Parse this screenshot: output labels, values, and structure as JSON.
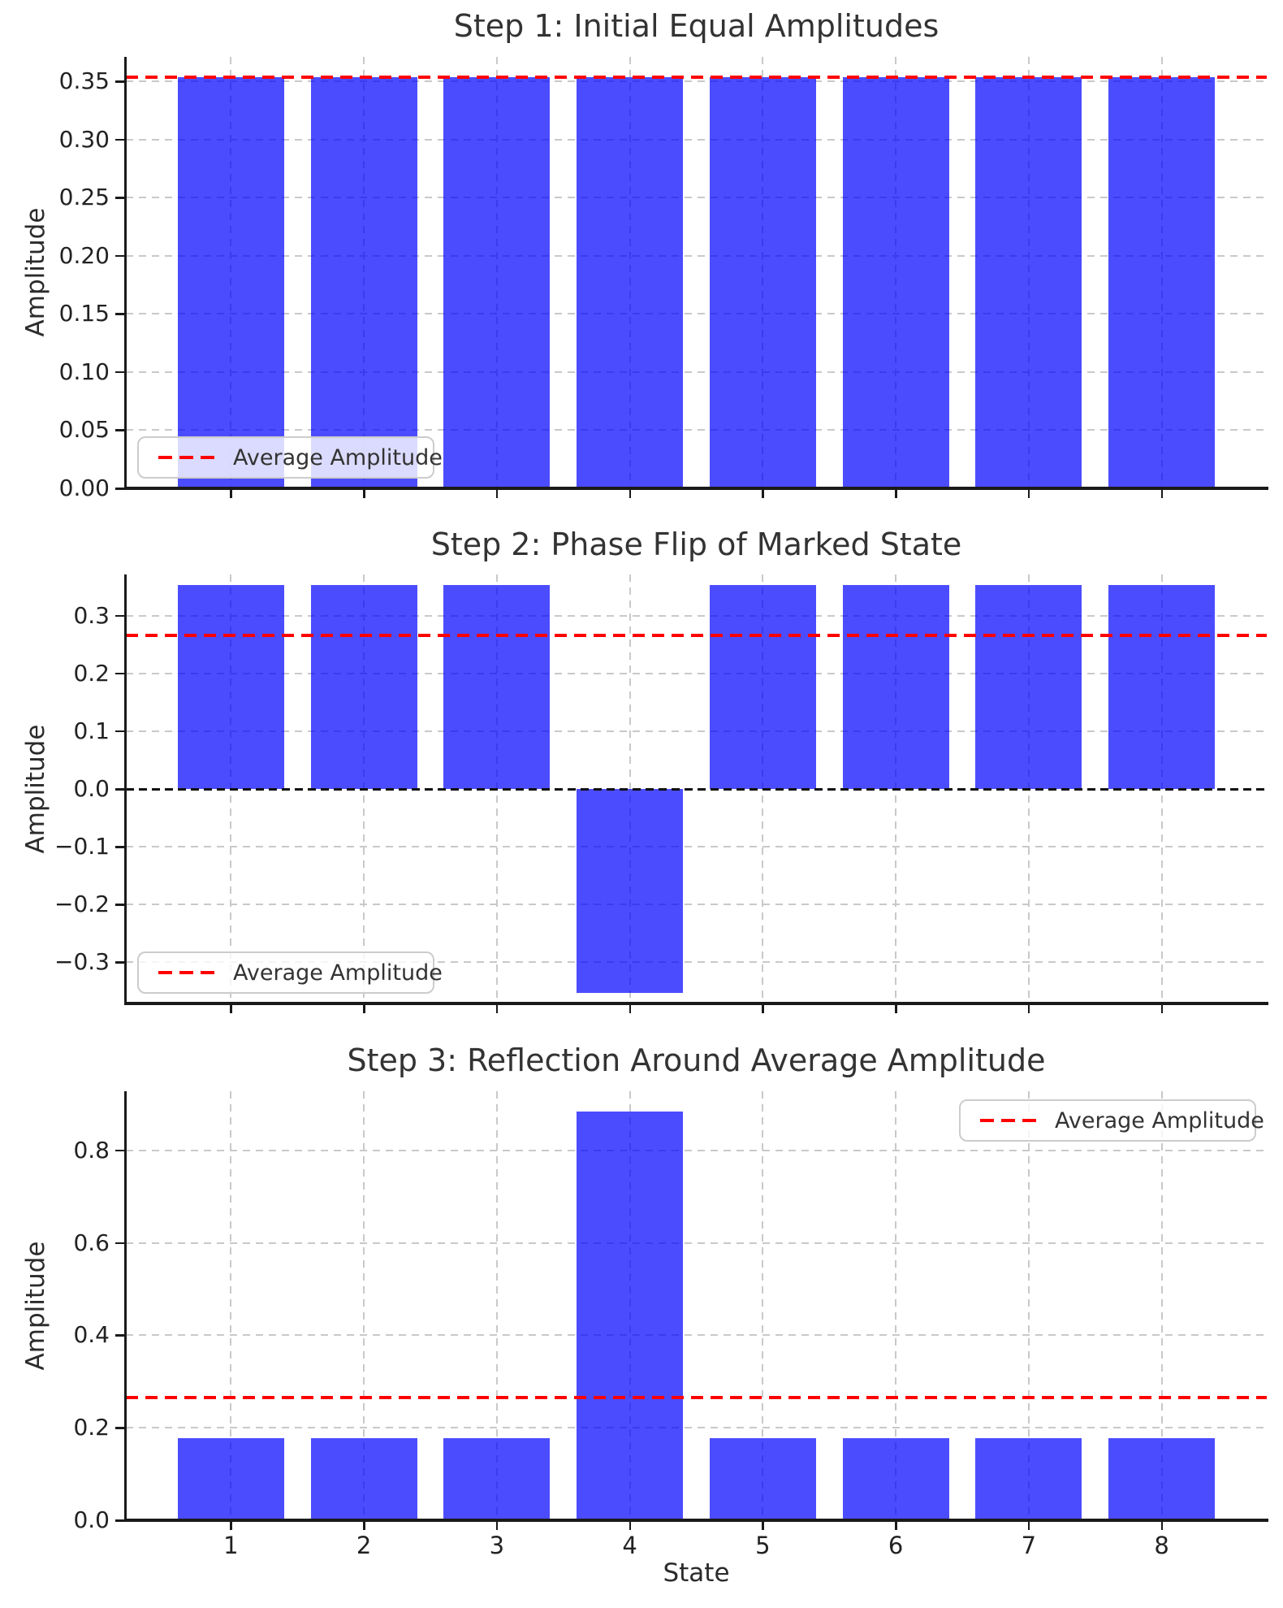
{
  "figure": {
    "background": "#ffffff",
    "bar_color": "#0000FF",
    "bar_alpha": 0.7,
    "average_line_color": "#FF0000",
    "grid_color": "#C9C9C9",
    "axis_color": "#1A1A1A",
    "text_color": "#333333"
  },
  "xlabel": "State",
  "chart_data": [
    {
      "type": "bar",
      "title": "Step 1: Initial Equal Amplitudes",
      "ylabel": "Amplitude",
      "categories": [
        1,
        2,
        3,
        4,
        5,
        6,
        7,
        8
      ],
      "values": [
        0.3536,
        0.3536,
        0.3536,
        0.3536,
        0.3536,
        0.3536,
        0.3536,
        0.3536
      ],
      "average": 0.3536,
      "bar_width": 0.8,
      "xlim": [
        0.21,
        8.79
      ],
      "ylim": [
        0,
        0.3713
      ],
      "ytick_values": [
        0.0,
        0.05,
        0.1,
        0.15,
        0.2,
        0.25,
        0.3,
        0.35
      ],
      "ytick_labels": [
        "0.00",
        "0.05",
        "0.10",
        "0.15",
        "0.20",
        "0.25",
        "0.30",
        "0.35"
      ],
      "grid": true,
      "zero_line": false,
      "show_x_tick_labels": false,
      "legend": {
        "label": "Average Amplitude",
        "position": "lower left"
      }
    },
    {
      "type": "bar",
      "title": "Step 2: Phase Flip of Marked State",
      "ylabel": "Amplitude",
      "categories": [
        1,
        2,
        3,
        4,
        5,
        6,
        7,
        8
      ],
      "values": [
        0.3536,
        0.3536,
        0.3536,
        -0.3536,
        0.3536,
        0.3536,
        0.3536,
        0.3536
      ],
      "average": 0.2652,
      "bar_width": 0.8,
      "xlim": [
        0.21,
        8.79
      ],
      "ylim": [
        -0.3713,
        0.3713
      ],
      "ytick_values": [
        -0.3,
        -0.2,
        -0.1,
        0.0,
        0.1,
        0.2,
        0.3
      ],
      "ytick_labels": [
        "−0.3",
        "−0.2",
        "−0.1",
        "0.0",
        "0.1",
        "0.2",
        "0.3"
      ],
      "grid": true,
      "zero_line": true,
      "show_x_tick_labels": false,
      "legend": {
        "label": "Average Amplitude",
        "position": "lower left"
      }
    },
    {
      "type": "bar",
      "title": "Step 3: Reflection Around Average Amplitude",
      "ylabel": "Amplitude",
      "xlabel": "State",
      "categories": [
        1,
        2,
        3,
        4,
        5,
        6,
        7,
        8
      ],
      "values": [
        0.1768,
        0.1768,
        0.1768,
        0.8839,
        0.1768,
        0.1768,
        0.1768,
        0.1768
      ],
      "average": 0.2652,
      "bar_width": 0.8,
      "xlim": [
        0.21,
        8.79
      ],
      "ylim": [
        0,
        0.9281
      ],
      "ytick_values": [
        0.0,
        0.2,
        0.4,
        0.6,
        0.8
      ],
      "ytick_labels": [
        "0.0",
        "0.2",
        "0.4",
        "0.6",
        "0.8"
      ],
      "xtick_labels": [
        "1",
        "2",
        "3",
        "4",
        "5",
        "6",
        "7",
        "8"
      ],
      "grid": true,
      "zero_line": false,
      "show_x_tick_labels": true,
      "legend": {
        "label": "Average Amplitude",
        "position": "upper right"
      }
    }
  ]
}
